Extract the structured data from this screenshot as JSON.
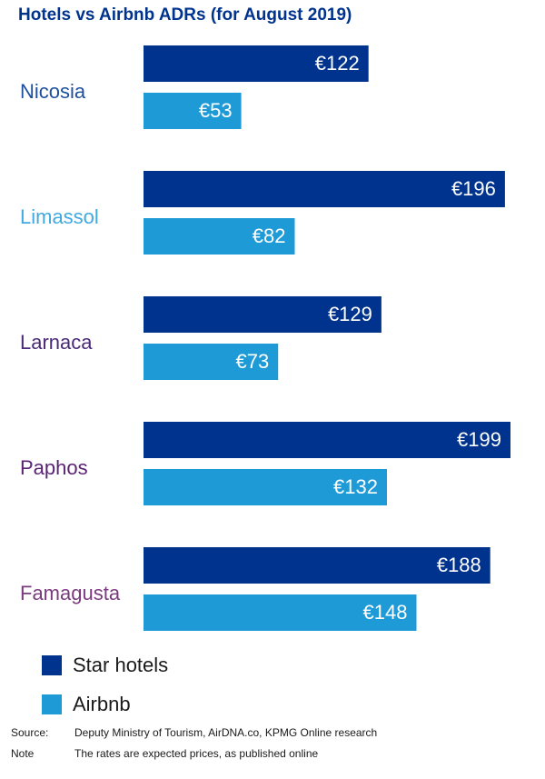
{
  "chart_data": {
    "type": "bar",
    "orientation": "horizontal",
    "title": "Hotels vs Airbnb ADRs (for August 2019)",
    "currency_prefix": "€",
    "categories": [
      "Nicosia",
      "Limassol",
      "Larnaca",
      "Paphos",
      "Famagusta"
    ],
    "category_colors": [
      "#1e4fa0",
      "#3fa9e0",
      "#4a2a78",
      "#5a2475",
      "#7a3a7e"
    ],
    "series": [
      {
        "name": "Star hotels",
        "color": "#00338d",
        "values": [
          122,
          196,
          129,
          199,
          188
        ]
      },
      {
        "name": "Airbnb",
        "color": "#1e9bd7",
        "values": [
          53,
          82,
          73,
          132,
          148
        ]
      }
    ],
    "xlim": [
      0,
      199
    ],
    "grid": false,
    "legend_position": "bottom-left"
  },
  "footer": {
    "source_label": "Source:",
    "source_text": "Deputy Ministry of Tourism, AirDNA.co, KPMG Online research",
    "note_label": "Note",
    "note_text": "The rates are expected prices, as published online"
  }
}
